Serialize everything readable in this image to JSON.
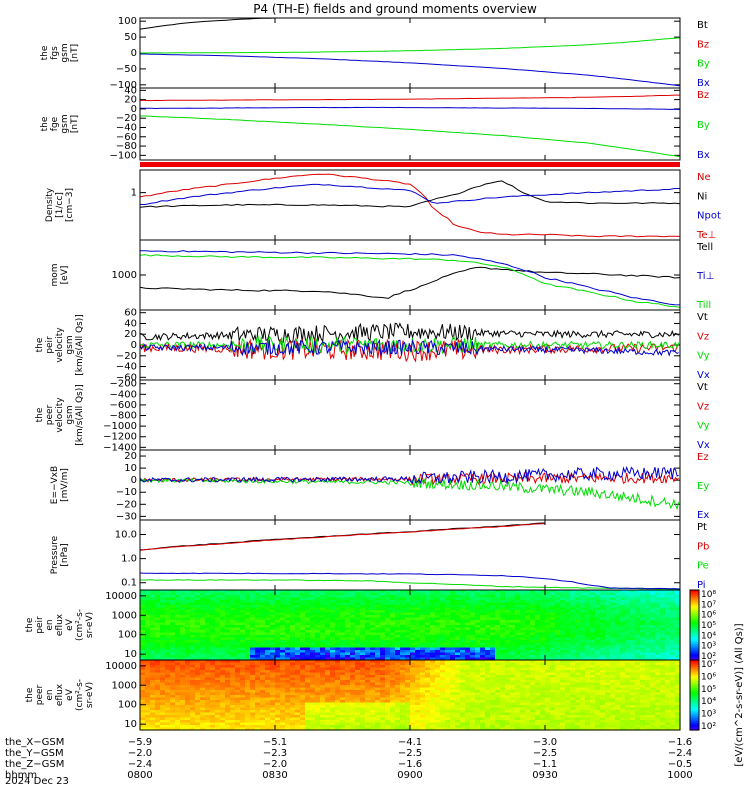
{
  "title": "P4 (TH-E) fields and ground moments overview",
  "date": "2024 Dec 23",
  "colorbar_label": "[eV/(cm^2-s-sr-eV)] (All Qs)]",
  "chart_data": [
    {
      "type": "line",
      "panel": 1,
      "ylabel_lines": [
        "the",
        "fgs",
        "gsm",
        "[nT]"
      ],
      "yticks": [
        "100",
        "50",
        "0",
        "−50",
        "−100"
      ],
      "ylim": [
        -110,
        110
      ],
      "series": [
        {
          "name": "Bt",
          "color": "#000000",
          "x": [
            0,
            5,
            10,
            15,
            20,
            25,
            30,
            35,
            40
          ],
          "y": [
            75,
            85,
            94,
            100,
            104,
            108,
            110,
            115,
            120
          ]
        },
        {
          "name": "Bz",
          "color": "#dd0000",
          "x": [],
          "y": []
        },
        {
          "name": "By",
          "color": "#00dd00",
          "x": [
            0,
            20,
            40,
            60,
            80,
            100,
            110,
            120
          ],
          "y": [
            0,
            1,
            3,
            7,
            14,
            26,
            36,
            48
          ]
        },
        {
          "name": "Bx",
          "color": "#0000cc",
          "x": [
            0,
            20,
            40,
            60,
            80,
            100,
            110,
            120
          ],
          "y": [
            -3,
            -9,
            -18,
            -31,
            -48,
            -70,
            -86,
            -103
          ]
        }
      ]
    },
    {
      "type": "line",
      "panel": 2,
      "ylabel_lines": [
        "the",
        "fge",
        "gsm",
        "[nT]"
      ],
      "yticks": [
        "40",
        "20",
        "0",
        "−20",
        "−40",
        "−60",
        "−80",
        "−100"
      ],
      "ylim": [
        -110,
        45
      ],
      "series": [
        {
          "name": "Bz",
          "color": "#dd0000",
          "x": [
            0,
            20,
            40,
            60,
            80,
            100,
            110,
            120
          ],
          "y": [
            18,
            19,
            20,
            21,
            23,
            25,
            27,
            30
          ]
        },
        {
          "name": "By",
          "color": "#00dd00",
          "x": [
            0,
            20,
            40,
            60,
            80,
            100,
            110,
            120
          ],
          "y": [
            -15,
            -23,
            -33,
            -44,
            -57,
            -74,
            -88,
            -103
          ]
        },
        {
          "name": "Bx",
          "color": "#0000cc",
          "x": [
            0,
            20,
            40,
            60,
            80,
            100,
            110,
            120
          ],
          "y": [
            1,
            2,
            3,
            3,
            2,
            1,
            0,
            -1
          ]
        }
      ]
    },
    {
      "type": "line",
      "panel": 3,
      "log": true,
      "ylabel_lines": [
        "Density",
        "[1/cc]",
        "[cm−3]"
      ],
      "yticks": [
        "1"
      ],
      "ylim": [
        0.1,
        3
      ],
      "series": [
        {
          "name": "Ne",
          "color": "#dd0000",
          "x": [
            0,
            20,
            40,
            60,
            65,
            70,
            75,
            80,
            90,
            100,
            120
          ],
          "y": [
            0.8,
            1.5,
            2.5,
            1.5,
            0.45,
            0.2,
            0.15,
            0.13,
            0.13,
            0.12,
            0.12
          ]
        },
        {
          "name": "Ni",
          "color": "#000000",
          "x": [
            0,
            20,
            40,
            60,
            70,
            80,
            85,
            90,
            100,
            120
          ],
          "y": [
            0.5,
            0.55,
            0.55,
            0.5,
            0.9,
            1.8,
            1.0,
            0.65,
            0.6,
            0.6
          ]
        },
        {
          "name": "Npot",
          "color": "#0000cc",
          "x": [
            0,
            20,
            40,
            60,
            65,
            70,
            80,
            100,
            120
          ],
          "y": [
            0.55,
            1.0,
            1.5,
            1.1,
            0.6,
            0.65,
            0.8,
            1.0,
            1.2
          ]
        },
        {
          "name": "Te⊥",
          "color": "#dd0000",
          "x": [],
          "y": []
        }
      ]
    },
    {
      "type": "line",
      "panel": 4,
      "log": true,
      "ylabel_lines": [
        "mom",
        "[eV]"
      ],
      "yticks": [
        "1000"
      ],
      "ylim": [
        250,
        4000
      ],
      "series": [
        {
          "name": "Tell",
          "color": "#000000",
          "x": [
            0,
            20,
            40,
            55,
            63,
            75,
            90,
            100,
            120
          ],
          "y": [
            600,
            550,
            530,
            400,
            650,
            1350,
            1100,
            1050,
            900
          ]
        },
        {
          "name": "Ti⊥",
          "color": "#0000cc",
          "x": [
            0,
            20,
            40,
            60,
            70,
            80,
            90,
            100,
            110,
            120
          ],
          "y": [
            2600,
            2500,
            2400,
            2300,
            2200,
            1600,
            900,
            600,
            400,
            300
          ]
        },
        {
          "name": "Till",
          "color": "#00dd00",
          "x": [
            0,
            20,
            40,
            60,
            70,
            80,
            90,
            100,
            110,
            120
          ],
          "y": [
            2200,
            2050,
            2000,
            1900,
            1800,
            1400,
            700,
            500,
            350,
            280
          ]
        }
      ]
    },
    {
      "type": "line",
      "panel": 5,
      "ylabel_lines": [
        "the",
        "peir",
        "velocity",
        "gsm",
        "[km/s(All Qs)]"
      ],
      "yticks": [
        "60",
        "40",
        "20",
        "0",
        "−20",
        "−40",
        "−60"
      ],
      "ylim": [
        -65,
        65
      ],
      "series": [
        {
          "name": "Vt",
          "color": "#000000",
          "x": [
            0,
            60,
            90,
            120
          ],
          "y": [
            15,
            25,
            20,
            20
          ]
        },
        {
          "name": "Vz",
          "color": "#dd0000",
          "x": [
            0,
            60,
            120
          ],
          "y": [
            -5,
            -10,
            -5
          ]
        },
        {
          "name": "Vy",
          "color": "#00dd00",
          "x": [
            0,
            120
          ],
          "y": [
            0,
            0
          ]
        },
        {
          "name": "Vx",
          "color": "#0000cc",
          "x": [
            0,
            60,
            100,
            120
          ],
          "y": [
            -5,
            -5,
            -10,
            -15
          ]
        }
      ]
    },
    {
      "type": "line",
      "panel": 6,
      "ylabel_lines": [
        "the",
        "peer",
        "velocity",
        "gsm",
        "[km/s(All Qs)]"
      ],
      "yticks": [
        "−200",
        "−400",
        "−600",
        "−800",
        "−1000",
        "−1200",
        "−1400"
      ],
      "ylim": [
        -1450,
        -130
      ],
      "series": [
        {
          "name": "Vt",
          "color": "#000000",
          "x": [],
          "y": []
        },
        {
          "name": "Vz",
          "color": "#dd0000",
          "x": [],
          "y": []
        },
        {
          "name": "Vy",
          "color": "#00dd00",
          "x": [],
          "y": []
        },
        {
          "name": "Vx",
          "color": "#0000cc",
          "x": [],
          "y": []
        }
      ]
    },
    {
      "type": "line",
      "panel": 7,
      "ylabel_lines": [
        "E=−VxB",
        "[mV/m]"
      ],
      "yticks": [
        "20",
        "10",
        "0",
        "−10",
        "−20",
        "−30"
      ],
      "ylim": [
        -33,
        25
      ],
      "series": [
        {
          "name": "Ez",
          "color": "#dd0000",
          "x": [
            0,
            60,
            120
          ],
          "y": [
            0,
            1,
            2
          ]
        },
        {
          "name": "Ey",
          "color": "#00dd00",
          "x": [
            0,
            60,
            80,
            100,
            110,
            120
          ],
          "y": [
            0,
            -2,
            -5,
            -10,
            -15,
            -20
          ]
        },
        {
          "name": "Ex",
          "color": "#0000cc",
          "x": [
            0,
            60,
            80,
            100,
            120
          ],
          "y": [
            0,
            1,
            3,
            5,
            6
          ]
        }
      ]
    },
    {
      "type": "line",
      "panel": 8,
      "log": true,
      "ylabel_lines": [
        "Pressure",
        "[nPa]"
      ],
      "yticks": [
        "10.0",
        "1.0",
        "0.1"
      ],
      "ylim": [
        0.05,
        40
      ],
      "series": [
        {
          "name": "Pt",
          "color": "#000000",
          "x": [
            0,
            20,
            40,
            60,
            80,
            90
          ],
          "y": [
            2.3,
            4.5,
            8,
            13,
            22,
            30
          ]
        },
        {
          "name": "Pb",
          "color": "#dd0000",
          "x": [
            0,
            20,
            40,
            60,
            80,
            90
          ],
          "y": [
            2.2,
            4.3,
            7.6,
            12.5,
            21,
            29
          ]
        },
        {
          "name": "Pe",
          "color": "#00dd00",
          "x": [
            0,
            30,
            50,
            60,
            80,
            100,
            120
          ],
          "y": [
            0.13,
            0.13,
            0.12,
            0.1,
            0.07,
            0.06,
            0.055
          ]
        },
        {
          "name": "Pi",
          "color": "#0000cc",
          "x": [
            0,
            40,
            60,
            80,
            90,
            100,
            105,
            120
          ],
          "y": [
            0.25,
            0.24,
            0.23,
            0.2,
            0.15,
            0.08,
            0.06,
            0.055
          ]
        }
      ]
    },
    {
      "type": "heatmap",
      "panel": 9,
      "ylabel_lines": [
        "the",
        "peir",
        "en",
        "eflux",
        "eV",
        "(cm²-s-",
        "sr-eV)"
      ],
      "yticks": [
        "10000",
        "1000",
        "100",
        "10"
      ],
      "colorbar_ticks": [
        "10⁸",
        "10⁷",
        "10⁶",
        "10⁵",
        "10⁴",
        "10³",
        "10²"
      ],
      "zlim_log": [
        2,
        8
      ]
    },
    {
      "type": "heatmap",
      "panel": 10,
      "ylabel_lines": [
        "the",
        "peer",
        "en",
        "eflux",
        "eV",
        "(cm²-s-",
        "sr-eV)"
      ],
      "yticks": [
        "10000",
        "1000",
        "100",
        "10"
      ],
      "colorbar_ticks": [
        "10⁷",
        "10⁶",
        "10⁵",
        "10⁴",
        "10³",
        "10²"
      ],
      "zlim_log": [
        2,
        7
      ]
    }
  ],
  "x_axis": {
    "rows": [
      {
        "label": "the_X−GSM",
        "values": [
          "−5.9",
          "−5.1",
          "−4.1",
          "−3.0",
          "−1.6"
        ]
      },
      {
        "label": "the_Y−GSM",
        "values": [
          "−2.0",
          "−2.3",
          "−2.5",
          "−2.5",
          "−2.4"
        ]
      },
      {
        "label": "the_Z−GSM",
        "values": [
          "−2.4",
          "−2.0",
          "−1.6",
          "−1.1",
          "−0.5"
        ]
      },
      {
        "label": "hhmm",
        "values": [
          "0800",
          "0830",
          "0900",
          "0930",
          "1000"
        ]
      }
    ],
    "tick_minutes": [
      0,
      30,
      60,
      90,
      120
    ]
  }
}
